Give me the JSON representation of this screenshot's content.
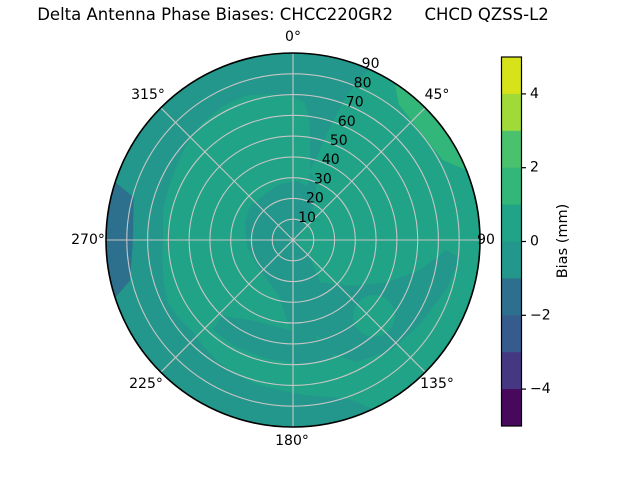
{
  "figure": {
    "title": "Delta Antenna Phase Biases: CHCC220GR2      CHCD QZSS-L2"
  },
  "chart_data": {
    "type": "polar_contour_filled",
    "title": "Delta Antenna Phase Biases: CHCC220GR2      CHCD QZSS-L2",
    "theta_ticks": [
      {
        "angle_deg": 0,
        "label": "0°"
      },
      {
        "angle_deg": 45,
        "label": "45°"
      },
      {
        "angle_deg": 90,
        "label": "90"
      },
      {
        "angle_deg": 135,
        "label": "135°"
      },
      {
        "angle_deg": 180,
        "label": "180°"
      },
      {
        "angle_deg": 225,
        "label": "225°"
      },
      {
        "angle_deg": 270,
        "label": "270°"
      },
      {
        "angle_deg": 315,
        "label": "315°"
      }
    ],
    "r_axis": {
      "min": 0,
      "max": 90,
      "label_angle_deg": 22.5
    },
    "r_ticks": [
      {
        "value": 10,
        "label": "10"
      },
      {
        "value": 20,
        "label": "20"
      },
      {
        "value": 30,
        "label": "30"
      },
      {
        "value": 40,
        "label": "40"
      },
      {
        "value": 50,
        "label": "50"
      },
      {
        "value": 60,
        "label": "60"
      },
      {
        "value": 70,
        "label": "70"
      },
      {
        "value": 80,
        "label": "80"
      },
      {
        "value": 90,
        "label": "90"
      }
    ],
    "colorbar": {
      "label": "Bias (mm)",
      "vmin": -5,
      "vmax": 5,
      "colormap": "viridis",
      "ticks": [
        {
          "value": 4,
          "label": "4"
        },
        {
          "value": 2,
          "label": "2"
        },
        {
          "value": 0,
          "label": "0"
        },
        {
          "value": -2,
          "label": "−2"
        },
        {
          "value": -4,
          "label": "−4"
        }
      ],
      "segments_top_to_bottom": [
        {
          "range": [
            4,
            5
          ],
          "color": "#d8e219"
        },
        {
          "range": [
            3,
            4
          ],
          "color": "#a0da39"
        },
        {
          "range": [
            2,
            3
          ],
          "color": "#4ac16d"
        },
        {
          "range": [
            1,
            2
          ],
          "color": "#33b67a"
        },
        {
          "range": [
            0,
            1
          ],
          "color": "#20a386"
        },
        {
          "range": [
            -1,
            0
          ],
          "color": "#23978b"
        },
        {
          "range": [
            -2,
            -1
          ],
          "color": "#2d708e"
        },
        {
          "range": [
            -3,
            -2
          ],
          "color": "#365c8d"
        },
        {
          "range": [
            -4,
            -3
          ],
          "color": "#453781"
        },
        {
          "range": [
            -5,
            -4
          ],
          "color": "#46095c"
        }
      ]
    },
    "regions": [
      {
        "area": "majority of the disk",
        "bias_mm": [
          0,
          1
        ]
      },
      {
        "area": "irregular center blob extending NNE and S",
        "bias_mm": [
          -1,
          0
        ]
      },
      {
        "area": "outer rim from SE (az 155°) through S, W, N to NNE (az 24°)",
        "bias_mm": [
          -1,
          0
        ]
      },
      {
        "area": "interior swath lower-right (az ~95°–170°)",
        "bias_mm": [
          -1,
          0
        ]
      },
      {
        "area": "bottom interior blob around az 180°, r 35–60",
        "bias_mm": [
          -1,
          0
        ]
      },
      {
        "area": "west rim patch az ~252°–288°",
        "bias_mm": [
          -2,
          -1
        ]
      },
      {
        "area": "northeast rim sliver az ~33°–68°",
        "bias_mm": [
          1,
          2
        ]
      }
    ],
    "grid": {
      "spokes_every_deg": 45,
      "rings_every": 10,
      "visible": true,
      "color": "#c6c6c6"
    }
  }
}
